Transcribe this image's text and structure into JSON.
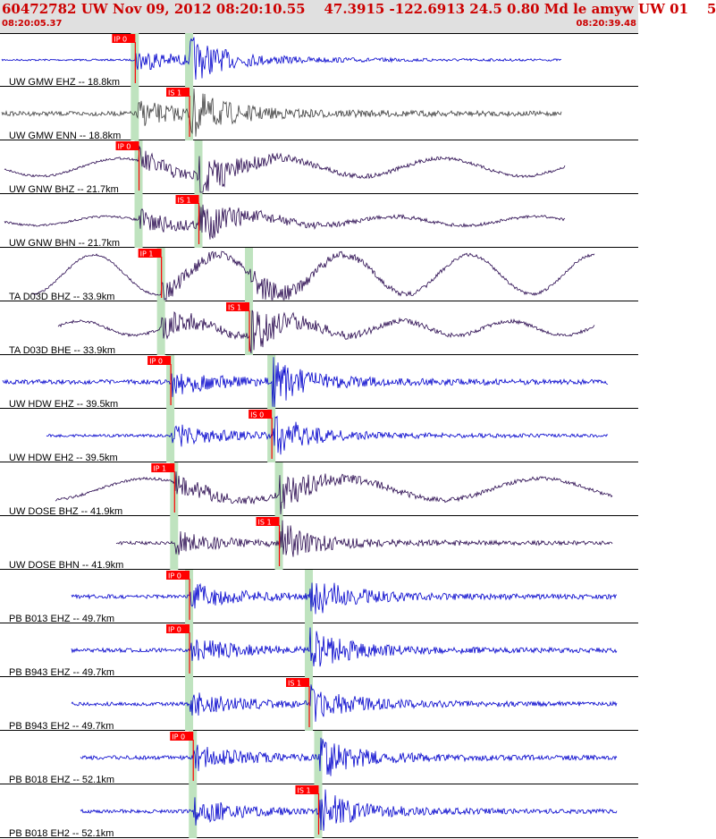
{
  "header": {
    "title": "60472782 UW Nov 09, 2012 08:20:10.55    47.3915 -122.6913 24.5 0.80 Md le amyw UW 01    5",
    "start_time": "08:20:05.37",
    "end_time": "08:20:39.48"
  },
  "colors": {
    "header_bg": "#e0e0e0",
    "header_text": "#cc0000",
    "pick_label_bg": "#ff0000",
    "pick_label_text": "#ffffff",
    "pick_window": "#bfe3bf",
    "blue_trace": "#0000cc",
    "gray_trace": "#404040",
    "purple_trace": "#2a0a50",
    "label_text": "#000000"
  },
  "chart_data": {
    "type": "line",
    "xlim": [
      "08:20:05.37",
      "08:20:39.48"
    ],
    "traces": [
      {
        "label": "UW GMW EHZ -- 18.8km",
        "pick": "IP 0",
        "p_pick": "08:20:12.6",
        "s_pick": "08:20:15.5",
        "color": "blue"
      },
      {
        "label": "UW GMW ENN -- 18.8km",
        "pick": "IS 1",
        "p_pick": "08:20:12.6",
        "s_pick": "08:20:15.5",
        "color": "gray"
      },
      {
        "label": "UW GNW BHZ -- 21.7km",
        "pick": "IP 0",
        "p_pick": "08:20:12.8",
        "s_pick": "08:20:16.0",
        "color": "purple"
      },
      {
        "label": "UW GNW BHN -- 21.7km",
        "pick": "IS 1",
        "p_pick": "08:20:12.8",
        "s_pick": "08:20:16.0",
        "color": "purple"
      },
      {
        "label": "TA D03D BHZ -- 33.9km",
        "pick": "IP 1",
        "p_pick": "08:20:14.0",
        "s_pick": "08:20:18.7",
        "color": "purple"
      },
      {
        "label": "TA D03D BHE -- 33.9km",
        "pick": "IS 1",
        "p_pick": "08:20:14.0",
        "s_pick": "08:20:18.7",
        "color": "purple"
      },
      {
        "label": "UW HDW EHZ -- 39.5km",
        "pick": "IP 0",
        "p_pick": "08:20:14.5",
        "s_pick": "08:20:19.9",
        "color": "blue"
      },
      {
        "label": "UW HDW EH2 -- 39.5km",
        "pick": "IS 0",
        "p_pick": "08:20:14.5",
        "s_pick": "08:20:19.9",
        "color": "blue"
      },
      {
        "label": "UW DOSE BHZ -- 41.9km",
        "pick": "IP 1",
        "p_pick": "08:20:14.7",
        "s_pick": "08:20:20.3",
        "color": "purple"
      },
      {
        "label": "UW DOSE BHN -- 41.9km",
        "pick": "IS 1",
        "p_pick": "08:20:14.7",
        "s_pick": "08:20:20.3",
        "color": "purple"
      },
      {
        "label": "PB B013 EHZ -- 49.7km",
        "pick": "IP 0",
        "p_pick": "08:20:15.5",
        "s_pick": "08:20:21.9",
        "color": "blue"
      },
      {
        "label": "PB B943 EHZ -- 49.7km",
        "pick": "IP 0",
        "p_pick": "08:20:15.5",
        "s_pick": "08:20:21.9",
        "color": "blue"
      },
      {
        "label": "PB B943 EH2 -- 49.7km",
        "pick": "IS 1",
        "p_pick": "08:20:15.5",
        "s_pick": "08:20:21.9",
        "color": "blue"
      },
      {
        "label": "PB B018 EHZ -- 52.1km",
        "pick": "IP 0",
        "p_pick": "08:20:15.7",
        "s_pick": "08:20:22.4",
        "color": "blue"
      },
      {
        "label": "PB B018 EH2 -- 52.1km",
        "pick": "IS 1",
        "p_pick": "08:20:15.7",
        "s_pick": "08:20:22.4",
        "color": "blue"
      }
    ]
  }
}
